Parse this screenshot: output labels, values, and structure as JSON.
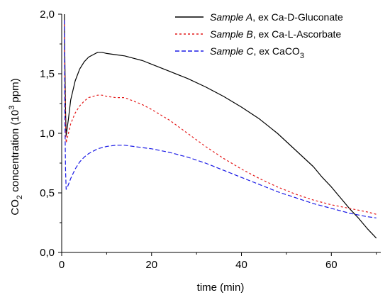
{
  "chart_data": {
    "type": "line",
    "xlabel": "time (min)",
    "ylabel": {
      "prefix": "CO",
      "prefix_sub": "2",
      "middle": " concentration (10",
      "sup": "3",
      "suffix": " ppm)"
    },
    "xlim": [
      0,
      71
    ],
    "ylim": [
      0,
      2.0
    ],
    "x_ticks": [
      0,
      20,
      40,
      60
    ],
    "x_tick_labels": [
      "0",
      "20",
      "40",
      "60"
    ],
    "y_ticks": [
      0,
      0.5,
      1.0,
      1.5,
      2.0
    ],
    "y_tick_labels": [
      "0,0",
      "0,5",
      "1,0",
      "1,5",
      "2,0"
    ],
    "grid": false,
    "legend_position": "top-right",
    "series": [
      {
        "legend": {
          "italic": "Sample A",
          "plain": ", ex Ca-D-Gluconate",
          "sub": ""
        },
        "color": "#000000",
        "dash": "solid",
        "x": [
          0.6,
          0.7,
          0.85,
          1,
          1.5,
          2,
          3,
          4,
          5,
          6,
          7,
          8,
          9,
          10,
          12,
          14,
          16,
          18,
          20,
          24,
          28,
          32,
          36,
          40,
          44,
          48,
          52,
          56,
          58,
          60,
          62,
          64,
          66,
          68,
          70
        ],
        "y": [
          2.0,
          1.65,
          1.2,
          0.98,
          1.12,
          1.28,
          1.44,
          1.54,
          1.6,
          1.64,
          1.66,
          1.68,
          1.68,
          1.67,
          1.66,
          1.65,
          1.63,
          1.61,
          1.58,
          1.52,
          1.46,
          1.39,
          1.31,
          1.22,
          1.12,
          1.0,
          0.86,
          0.72,
          0.63,
          0.55,
          0.46,
          0.37,
          0.29,
          0.2,
          0.12
        ]
      },
      {
        "legend": {
          "italic": "Sample B",
          "plain": ", ex Ca-L-Ascorbate",
          "sub": ""
        },
        "color": "#e41a1a",
        "dash": "3,3",
        "x": [
          0.6,
          0.7,
          0.85,
          1,
          1.5,
          2,
          3,
          4,
          5,
          6,
          7,
          8,
          9,
          10,
          12,
          14,
          16,
          18,
          20,
          24,
          28,
          32,
          36,
          40,
          44,
          48,
          52,
          56,
          60,
          64,
          68,
          70
        ],
        "y": [
          1.95,
          1.5,
          1.1,
          0.92,
          1.0,
          1.08,
          1.17,
          1.23,
          1.27,
          1.3,
          1.31,
          1.32,
          1.32,
          1.31,
          1.3,
          1.3,
          1.27,
          1.24,
          1.2,
          1.11,
          1.0,
          0.89,
          0.79,
          0.7,
          0.62,
          0.55,
          0.49,
          0.44,
          0.4,
          0.37,
          0.34,
          0.32
        ]
      },
      {
        "legend": {
          "italic": "Sample C",
          "plain": ", ex CaCO",
          "sub": "3"
        },
        "color": "#1a1ae6",
        "dash": "6,3",
        "x": [
          0.6,
          0.7,
          0.85,
          1,
          1.3,
          1.6,
          2,
          3,
          4,
          5,
          6,
          7,
          8,
          10,
          12,
          14,
          16,
          18,
          20,
          24,
          28,
          32,
          36,
          40,
          44,
          48,
          52,
          56,
          60,
          64,
          68,
          70
        ],
        "y": [
          1.95,
          1.2,
          0.7,
          0.53,
          0.55,
          0.58,
          0.62,
          0.7,
          0.76,
          0.8,
          0.83,
          0.85,
          0.87,
          0.89,
          0.9,
          0.9,
          0.89,
          0.88,
          0.87,
          0.84,
          0.8,
          0.75,
          0.69,
          0.63,
          0.57,
          0.51,
          0.46,
          0.41,
          0.37,
          0.33,
          0.3,
          0.29
        ]
      }
    ]
  }
}
